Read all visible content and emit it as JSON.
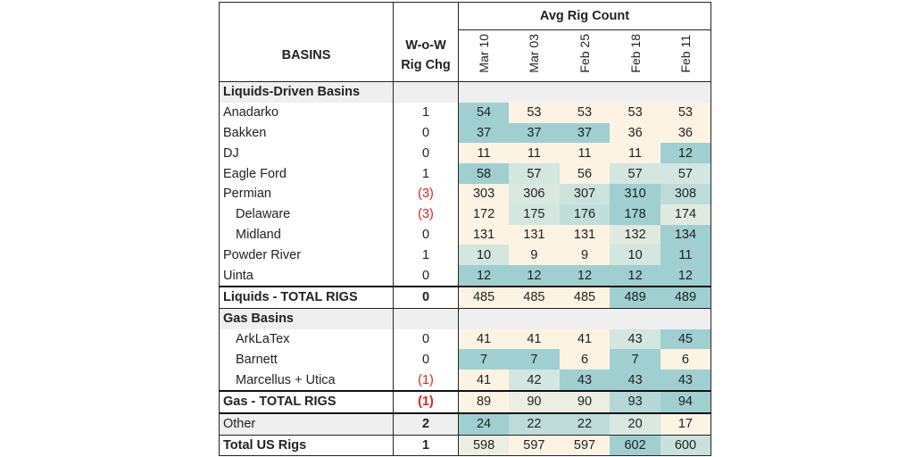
{
  "header": {
    "group": "Avg Rig Count",
    "basins": "BASINS",
    "wow_line1": "W-o-W",
    "wow_line2": "Rig Chg",
    "dates": [
      "Mar 10",
      "Mar 03",
      "Feb 25",
      "Feb 18",
      "Feb 11"
    ]
  },
  "sections": {
    "liquids": "Liquids-Driven Basins",
    "gas": "Gas Basins"
  },
  "rows": {
    "anadarko": {
      "name": "Anadarko",
      "chg": "1",
      "vals": [
        "54",
        "53",
        "53",
        "53",
        "53"
      ]
    },
    "bakken": {
      "name": "Bakken",
      "chg": "0",
      "vals": [
        "37",
        "37",
        "37",
        "36",
        "36"
      ]
    },
    "dj": {
      "name": "DJ",
      "chg": "0",
      "vals": [
        "11",
        "11",
        "11",
        "11",
        "12"
      ]
    },
    "eagleford": {
      "name": "Eagle Ford",
      "chg": "1",
      "vals": [
        "58",
        "57",
        "56",
        "57",
        "57"
      ]
    },
    "permian": {
      "name": "Permian",
      "chg": "(3)",
      "vals": [
        "303",
        "306",
        "307",
        "310",
        "308"
      ]
    },
    "delaware": {
      "name": "Delaware",
      "chg": "(3)",
      "vals": [
        "172",
        "175",
        "176",
        "178",
        "174"
      ]
    },
    "midland": {
      "name": "Midland",
      "chg": "0",
      "vals": [
        "131",
        "131",
        "131",
        "132",
        "134"
      ]
    },
    "powder": {
      "name": "Powder River",
      "chg": "1",
      "vals": [
        "10",
        "9",
        "9",
        "10",
        "11"
      ]
    },
    "uinta": {
      "name": "Uinta",
      "chg": "0",
      "vals": [
        "12",
        "12",
        "12",
        "12",
        "12"
      ]
    },
    "liqtotal": {
      "name": "Liquids - TOTAL RIGS",
      "chg": "0",
      "vals": [
        "485",
        "485",
        "485",
        "489",
        "489"
      ]
    },
    "arklatex": {
      "name": "ArkLaTex",
      "chg": "0",
      "vals": [
        "41",
        "41",
        "41",
        "43",
        "45"
      ]
    },
    "barnett": {
      "name": "Barnett",
      "chg": "0",
      "vals": [
        "7",
        "7",
        "6",
        "7",
        "6"
      ]
    },
    "marcellus": {
      "name": "Marcellus + Utica",
      "chg": "(1)",
      "vals": [
        "41",
        "42",
        "43",
        "43",
        "43"
      ]
    },
    "gastotal": {
      "name": "Gas - TOTAL RIGS",
      "chg": "(1)",
      "vals": [
        "89",
        "90",
        "90",
        "93",
        "94"
      ]
    },
    "other": {
      "name": "Other",
      "chg": "2",
      "vals": [
        "24",
        "22",
        "22",
        "20",
        "17"
      ]
    },
    "total": {
      "name": "Total US Rigs",
      "chg": "1",
      "vals": [
        "598",
        "597",
        "597",
        "602",
        "600"
      ]
    }
  },
  "colors": {
    "heat_low": "#fdf3e3",
    "heat_mid": "#d3e6df",
    "heat_high": "#9fcfd1",
    "negative": "#e0201e",
    "section_bg": "#efefef"
  }
}
